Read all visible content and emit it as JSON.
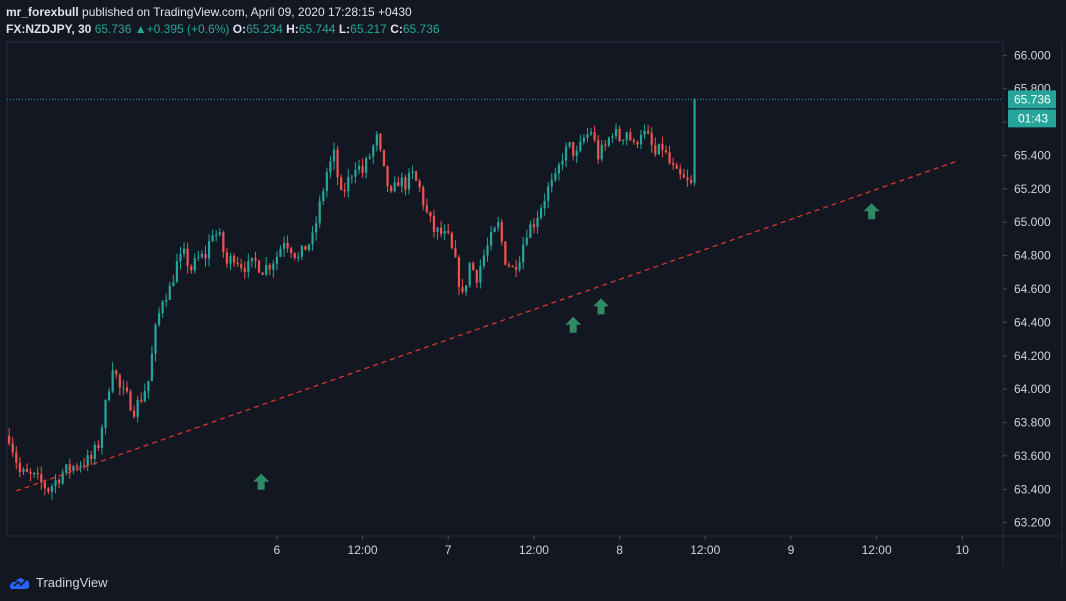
{
  "header": {
    "author": "mr_forexbull",
    "published_text": " published on TradingView.com, April 09, 2020 17:28:15 +0430",
    "symbol": "FX:NZDJPY, 30",
    "last": "65.736",
    "arrow": "▲",
    "change": "+0.395 (+0.6%)",
    "o_label": "O:",
    "o": "65.234",
    "h_label": "H:",
    "h": "65.744",
    "l_label": "L:",
    "l": "65.217",
    "c_label": "C:",
    "c": "65.736"
  },
  "footer": {
    "brand": "TradingView"
  },
  "colors": {
    "background": "#131722",
    "up": "#26a69a",
    "down": "#ef5350",
    "trendline": "#e53935",
    "arrow": "#2e8b66",
    "price_line": "#26a69a",
    "axis_text": "#d1d4dc"
  },
  "chart_data": {
    "type": "candlestick",
    "y_axis": {
      "ylim": [
        63.12,
        66.08
      ],
      "ticks": [
        "63.200",
        "63.400",
        "63.600",
        "63.800",
        "64.000",
        "64.200",
        "64.400",
        "64.600",
        "64.800",
        "65.000",
        "65.200",
        "65.400",
        "65.600",
        "65.800",
        "66.000"
      ],
      "side": "right"
    },
    "x_axis": {
      "ticks": [
        {
          "label": "6",
          "t": 24
        },
        {
          "label": "12:00",
          "t": 36
        },
        {
          "label": "7",
          "t": 48
        },
        {
          "label": "12:00",
          "t": 60
        },
        {
          "label": "8",
          "t": 72
        },
        {
          "label": "12:00",
          "t": 84
        },
        {
          "label": "9",
          "t": 96
        },
        {
          "label": "12:00",
          "t": 108
        },
        {
          "label": "10",
          "t": 120
        }
      ],
      "xlim": [
        -13.8,
        125.7
      ]
    },
    "last_price": {
      "value": 65.736,
      "label": "65.736",
      "countdown": "01:43"
    },
    "trendline": {
      "points": [
        [
          -12.5,
          63.39
        ],
        [
          119.5,
          65.37
        ]
      ],
      "style": "dashed"
    },
    "arrows": [
      {
        "t": 21.8,
        "y": 63.44,
        "direction": "up"
      },
      {
        "t": 65.5,
        "y": 64.38,
        "direction": "up"
      },
      {
        "t": 69.4,
        "y": 64.49,
        "direction": "up"
      },
      {
        "t": 107.3,
        "y": 65.06,
        "direction": "up"
      }
    ],
    "anchors": [
      [
        -13.5,
        63.72
      ],
      [
        -12.0,
        63.5
      ],
      [
        -10.0,
        63.47
      ],
      [
        -8.0,
        63.4
      ],
      [
        -6.0,
        63.5
      ],
      [
        -4.0,
        63.55
      ],
      [
        -2.0,
        63.58
      ],
      [
        -1.0,
        63.67
      ],
      [
        0.0,
        63.9
      ],
      [
        1.0,
        64.15
      ],
      [
        2.0,
        64.0
      ],
      [
        3.0,
        63.95
      ],
      [
        4.0,
        63.88
      ],
      [
        5.0,
        63.95
      ],
      [
        6.0,
        64.05
      ],
      [
        7.0,
        64.35
      ],
      [
        8.0,
        64.55
      ],
      [
        9.0,
        64.6
      ],
      [
        10.0,
        64.75
      ],
      [
        11.0,
        64.8
      ],
      [
        12.0,
        64.72
      ],
      [
        13.0,
        64.78
      ],
      [
        14.0,
        64.8
      ],
      [
        15.0,
        64.95
      ],
      [
        16.0,
        64.9
      ],
      [
        17.0,
        64.75
      ],
      [
        18.0,
        64.8
      ],
      [
        19.0,
        64.75
      ],
      [
        20.0,
        64.73
      ],
      [
        21.0,
        64.76
      ],
      [
        22.0,
        64.72
      ],
      [
        23.0,
        64.75
      ],
      [
        24.0,
        64.8
      ],
      [
        25.0,
        64.9
      ],
      [
        26.0,
        64.85
      ],
      [
        27.0,
        64.78
      ],
      [
        28.0,
        64.85
      ],
      [
        29.0,
        64.9
      ],
      [
        30.0,
        65.1
      ],
      [
        31.0,
        65.3
      ],
      [
        32.0,
        65.4
      ],
      [
        33.0,
        65.15
      ],
      [
        34.0,
        65.25
      ],
      [
        35.0,
        65.35
      ],
      [
        36.0,
        65.3
      ],
      [
        37.0,
        65.4
      ],
      [
        38.0,
        65.5
      ],
      [
        39.0,
        65.3
      ],
      [
        40.0,
        65.15
      ],
      [
        41.0,
        65.25
      ],
      [
        42.0,
        65.23
      ],
      [
        43.0,
        65.28
      ],
      [
        44.0,
        65.2
      ],
      [
        45.0,
        65.05
      ],
      [
        46.0,
        64.95
      ],
      [
        47.0,
        64.93
      ],
      [
        48.0,
        64.9
      ],
      [
        49.0,
        64.75
      ],
      [
        50.0,
        64.55
      ],
      [
        51.0,
        64.75
      ],
      [
        52.0,
        64.68
      ],
      [
        53.0,
        64.8
      ],
      [
        54.0,
        64.9
      ],
      [
        55.0,
        64.98
      ],
      [
        56.0,
        64.78
      ],
      [
        57.0,
        64.72
      ],
      [
        58.0,
        64.8
      ],
      [
        59.0,
        64.95
      ],
      [
        60.0,
        65.0
      ],
      [
        61.0,
        65.1
      ],
      [
        62.0,
        65.2
      ],
      [
        63.0,
        65.25
      ],
      [
        64.0,
        65.4
      ],
      [
        65.0,
        65.45
      ],
      [
        66.0,
        65.4
      ],
      [
        67.0,
        65.5
      ],
      [
        68.0,
        65.55
      ],
      [
        69.0,
        65.4
      ],
      [
        70.0,
        65.45
      ],
      [
        71.0,
        65.55
      ],
      [
        72.0,
        65.5
      ],
      [
        73.0,
        65.55
      ],
      [
        74.0,
        65.45
      ],
      [
        75.0,
        65.55
      ],
      [
        76.0,
        65.5
      ],
      [
        77.0,
        65.4
      ],
      [
        78.0,
        65.45
      ],
      [
        79.0,
        65.35
      ],
      [
        80.0,
        65.28
      ],
      [
        81.0,
        65.25
      ],
      [
        82.0,
        65.22
      ],
      [
        82.5,
        65.736
      ]
    ]
  }
}
